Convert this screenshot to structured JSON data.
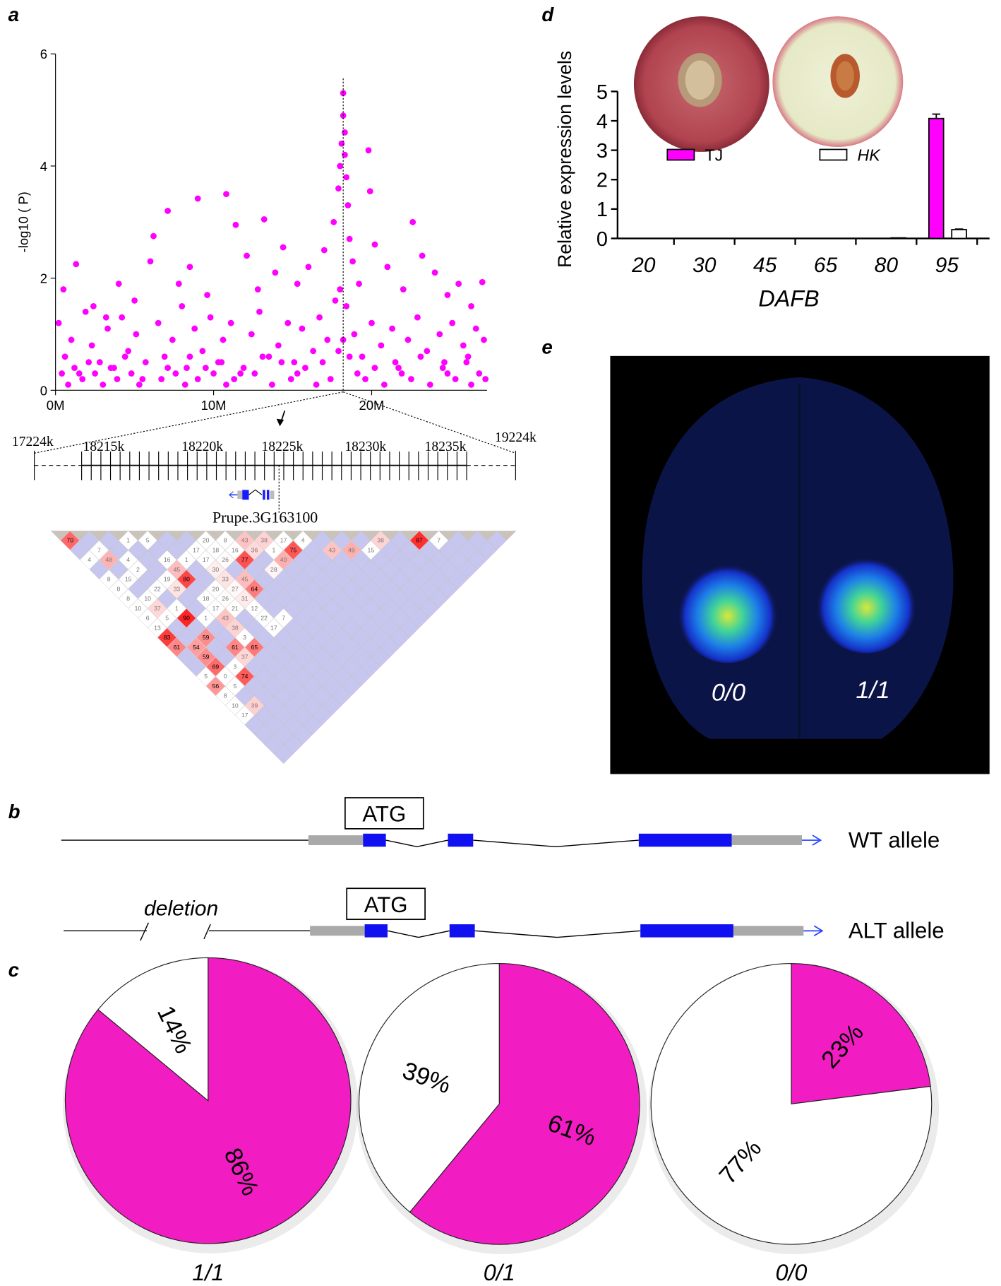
{
  "panel_labels": [
    "a",
    "b",
    "c",
    "d",
    "e"
  ],
  "chart_data": [
    {
      "type": "scatter",
      "ylabel": "-log10 ( P)",
      "color": "#ff00ff",
      "xlim": [
        0,
        27.3
      ],
      "ylim": [
        0,
        6
      ],
      "xticks": [
        {
          "value": 0,
          "label": "0M"
        },
        {
          "value": 10,
          "label": "10M"
        },
        {
          "value": 20,
          "label": "20M"
        }
      ],
      "yticks": [
        0,
        2,
        4,
        6
      ],
      "x": [
        0.5,
        1.3,
        2.4,
        3.2,
        4.0,
        5.0,
        6.0,
        6.2,
        7.1,
        7.8,
        8.5,
        9.0,
        9.6,
        10.8,
        11.4,
        12.1,
        12.8,
        13.2,
        13.9,
        14.4,
        15.3,
        16.0,
        17.0,
        17.6,
        17.9,
        18.0,
        18.1,
        18.2,
        18.2,
        18.3,
        18.3,
        18.4,
        18.5,
        18.6,
        18.8,
        19.2,
        19.8,
        19.9,
        20.2,
        21.0,
        22.0,
        22.6,
        23.2,
        24.0,
        24.8,
        25.5,
        26.3,
        27.0,
        0.2,
        0.6,
        1.0,
        1.5,
        1.9,
        2.3,
        2.8,
        3.3,
        3.7,
        4.2,
        4.6,
        5.1,
        5.5,
        6.5,
        6.9,
        7.4,
        8.0,
        8.3,
        8.8,
        9.3,
        9.8,
        10.3,
        10.6,
        11.1,
        11.7,
        12.4,
        12.9,
        13.5,
        14.1,
        14.7,
        15.1,
        15.6,
        16.3,
        16.7,
        17.2,
        17.7,
        18.0,
        18.4,
        18.9,
        19.4,
        20.0,
        20.6,
        21.3,
        21.7,
        22.3,
        22.9,
        23.5,
        24.3,
        24.6,
        25.1,
        25.8,
        26.1,
        26.6,
        27.1,
        0.4,
        0.8,
        1.2,
        1.7,
        2.1,
        2.5,
        3.0,
        3.5,
        3.9,
        4.4,
        4.8,
        5.3,
        5.7,
        6.7,
        7.1,
        7.6,
        8.2,
        8.5,
        9.0,
        9.5,
        10.0,
        10.5,
        10.8,
        11.3,
        11.9,
        12.6,
        13.1,
        13.7,
        14.3,
        14.9,
        15.3,
        15.8,
        16.5,
        16.9,
        17.4,
        17.9,
        18.2,
        18.6,
        19.1,
        19.6,
        20.2,
        20.8,
        21.5,
        21.9,
        22.5,
        23.1,
        23.7,
        24.5,
        24.8,
        25.3,
        26.0,
        26.3,
        26.8,
        27.2
      ],
      "values": [
        1.8,
        2.25,
        1.5,
        1.3,
        1.9,
        1.6,
        2.3,
        2.75,
        3.2,
        1.9,
        2.2,
        3.42,
        1.7,
        3.5,
        2.95,
        2.4,
        1.8,
        3.05,
        2.1,
        2.55,
        1.9,
        2.2,
        2.5,
        3.0,
        3.6,
        4.0,
        4.4,
        5.3,
        4.9,
        4.6,
        4.2,
        3.8,
        3.3,
        2.7,
        2.3,
        1.9,
        4.28,
        3.55,
        2.6,
        2.2,
        1.8,
        3.0,
        2.4,
        2.1,
        1.7,
        1.9,
        1.5,
        1.93,
        1.2,
        0.6,
        0.9,
        0.3,
        1.4,
        0.8,
        0.5,
        1.1,
        0.4,
        1.3,
        0.7,
        1.0,
        0.2,
        1.2,
        0.6,
        0.9,
        1.5,
        0.4,
        1.1,
        0.7,
        1.3,
        0.5,
        0.9,
        1.2,
        0.3,
        1.0,
        1.4,
        0.6,
        0.8,
        1.2,
        0.5,
        1.1,
        0.7,
        1.3,
        0.9,
        1.6,
        1.8,
        1.5,
        1.0,
        0.6,
        1.2,
        0.8,
        1.1,
        0.4,
        0.9,
        1.3,
        0.7,
        1.0,
        0.5,
        1.2,
        0.8,
        0.6,
        1.1,
        0.9,
        0.3,
        0.1,
        0.4,
        0.2,
        0.5,
        0.3,
        0.1,
        0.4,
        0.2,
        0.6,
        0.3,
        0.1,
        0.5,
        0.2,
        0.4,
        0.3,
        0.1,
        0.6,
        0.2,
        0.4,
        0.3,
        0.5,
        0.1,
        0.2,
        0.4,
        0.3,
        0.6,
        0.1,
        0.5,
        0.2,
        0.3,
        0.4,
        0.1,
        0.5,
        0.2,
        0.7,
        0.9,
        0.6,
        0.3,
        0.2,
        0.4,
        0.1,
        0.5,
        0.3,
        0.2,
        0.6,
        0.1,
        0.4,
        0.3,
        0.2,
        0.5,
        0.1,
        0.3,
        0.2
      ]
    },
    {
      "type": "bar",
      "xlabel": "DAFB",
      "ylabel": "Relative expression levels",
      "categories": [
        "20",
        "30",
        "45",
        "65",
        "80",
        "95"
      ],
      "ylim": [
        0,
        5
      ],
      "yticks": [
        0,
        1,
        2,
        3,
        4,
        5
      ],
      "series": [
        {
          "name": "TJ",
          "color": "#ff00ff",
          "values": [
            0,
            0,
            0,
            0,
            0,
            4.08
          ],
          "errors": [
            0,
            0,
            0,
            0,
            0,
            0.15
          ]
        },
        {
          "name": "HK",
          "color": "#ffffff",
          "values": [
            0,
            0,
            0,
            0,
            0.02,
            0.3
          ],
          "errors": [
            0,
            0,
            0,
            0,
            0,
            0.02
          ]
        }
      ]
    },
    {
      "type": "pie",
      "title": "1/1",
      "values": [
        86,
        14
      ],
      "value_labels": [
        "86%",
        "14%"
      ],
      "colors": [
        "#f21cc3",
        "#ffffff"
      ]
    },
    {
      "type": "pie",
      "title": "0/1",
      "values": [
        61,
        39
      ],
      "value_labels": [
        "61%",
        "39%"
      ],
      "colors": [
        "#f21cc3",
        "#ffffff"
      ]
    },
    {
      "type": "pie",
      "title": "0/0",
      "values": [
        23,
        77
      ],
      "value_labels": [
        "23%",
        "77%"
      ],
      "colors": [
        "#f21cc3",
        "#ffffff"
      ]
    }
  ],
  "gene_region": {
    "labels": [
      "17224k",
      "18215k",
      "18220k",
      "18225k",
      "18230k",
      "18235k",
      "19224k"
    ],
    "gene": "Prupe.3G163100"
  },
  "ld_heatmap": {
    "rows": [
      [
        70,
        null,
        null,
        1,
        5,
        null,
        null,
        20,
        8,
        43,
        38,
        17,
        4,
        null,
        null,
        null,
        38,
        null,
        87,
        7,
        null,
        null,
        null
      ],
      [
        null,
        7,
        null,
        null,
        null,
        null,
        17,
        18,
        16,
        36,
        1,
        75,
        null,
        43,
        49,
        15,
        null,
        null,
        null,
        null,
        null,
        null
      ],
      [
        4,
        48,
        4,
        null,
        16,
        1,
        17,
        26,
        77,
        null,
        49,
        null,
        null,
        null,
        null,
        null,
        null,
        null,
        null,
        null,
        null
      ],
      [
        null,
        null,
        2,
        null,
        45,
        null,
        30,
        null,
        null,
        28,
        null,
        null,
        null,
        null,
        null,
        null,
        null,
        null,
        null,
        null
      ],
      [
        8,
        15,
        null,
        19,
        80,
        null,
        33,
        45,
        null,
        null,
        null,
        null,
        null,
        null,
        null,
        null,
        null,
        null,
        null
      ],
      [
        8,
        null,
        22,
        33,
        null,
        20,
        27,
        64,
        null,
        null,
        null,
        null,
        null,
        null,
        null,
        null,
        null,
        null
      ],
      [
        8,
        10,
        null,
        null,
        18,
        26,
        31,
        null,
        null,
        null,
        null,
        null,
        null,
        null,
        null,
        null,
        null
      ],
      [
        10,
        37,
        1,
        null,
        17,
        21,
        12,
        null,
        null,
        null,
        null,
        null,
        null,
        null,
        null,
        null
      ],
      [
        6,
        5,
        90,
        1,
        43,
        null,
        22,
        7,
        null,
        null,
        null,
        null,
        null,
        null,
        null
      ],
      [
        13,
        null,
        null,
        null,
        38,
        null,
        17,
        null,
        null,
        null,
        null,
        null,
        null,
        null
      ],
      [
        83,
        null,
        59,
        null,
        3,
        null,
        null,
        null,
        null,
        null,
        null,
        null,
        null
      ],
      [
        61,
        54,
        null,
        61,
        65,
        null,
        null,
        null,
        null,
        null,
        null,
        null
      ],
      [
        null,
        59,
        null,
        37,
        null,
        null,
        null,
        null,
        null,
        null,
        null
      ],
      [
        null,
        69,
        3,
        null,
        null,
        null,
        null,
        null,
        null,
        null
      ],
      [
        5,
        0,
        74,
        null,
        null,
        null,
        null,
        null,
        null
      ],
      [
        56,
        5,
        null,
        null,
        null,
        null,
        null,
        null
      ],
      [
        8,
        null,
        null,
        null,
        null,
        null,
        null
      ],
      [
        10,
        39,
        null,
        null,
        null,
        null
      ],
      [
        17,
        null,
        null,
        null,
        null
      ],
      [
        null,
        null,
        null,
        null
      ],
      [
        null,
        null,
        null
      ],
      [
        null,
        null
      ],
      [
        null
      ]
    ]
  },
  "gene_models": {
    "wt": {
      "atg": "ATG",
      "label": "WT allele"
    },
    "alt": {
      "atg": "ATG",
      "label": "ALT allele",
      "deletion": "deletion"
    }
  },
  "image_panel": {
    "labels": [
      "0/0",
      "1/1"
    ]
  }
}
